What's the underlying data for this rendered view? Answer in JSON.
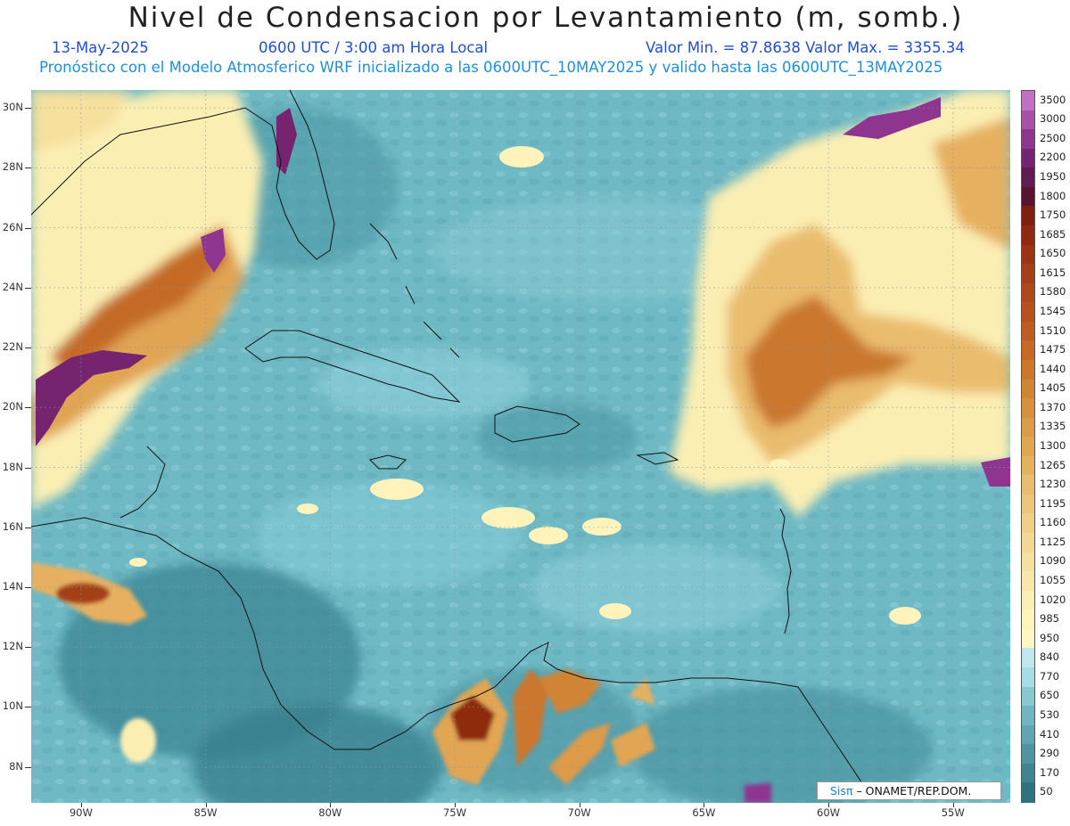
{
  "header": {
    "title": "Nivel de Condensacion por Levantamiento (m, somb.)",
    "date": "13-May-2025",
    "time": "0600 UTC / 3:00 am Hora Local",
    "minmax": "Valor Min. = 87.8638   Valor Max. = 3355.34",
    "model_line": "Pronóstico con el Modelo Atmosferico WRF inicializado a las 0600UTC_10MAY2025 y valido hasta las  0600UTC_13MAY2025"
  },
  "map": {
    "lat_range": [
      6.8,
      30.6
    ],
    "lon_range": [
      -92.0,
      -52.7
    ],
    "lat_labels": [
      "30N",
      "28N",
      "26N",
      "24N",
      "22N",
      "20N",
      "18N",
      "16N",
      "14N",
      "12N",
      "10N",
      "8N"
    ],
    "lat_values": [
      30,
      28,
      26,
      24,
      22,
      20,
      18,
      16,
      14,
      12,
      10,
      8
    ],
    "lon_labels": [
      "90W",
      "85W",
      "80W",
      "75W",
      "70W",
      "65W",
      "60W",
      "55W"
    ],
    "lon_values": [
      -90,
      -85,
      -80,
      -75,
      -70,
      -65,
      -60,
      -55
    ]
  },
  "legend": {
    "levels": [
      "3500",
      "3000",
      "2500",
      "2200",
      "1950",
      "1800",
      "1750",
      "1685",
      "1650",
      "1615",
      "1580",
      "1545",
      "1510",
      "1475",
      "1440",
      "1405",
      "1370",
      "1335",
      "1300",
      "1265",
      "1230",
      "1195",
      "1160",
      "1125",
      "1090",
      "1055",
      "1020",
      "985",
      "950",
      "840",
      "770",
      "650",
      "530",
      "410",
      "290",
      "170",
      "50"
    ],
    "colors": [
      "#c46fc4",
      "#a850a8",
      "#8e3590",
      "#76246f",
      "#621a50",
      "#5a1230",
      "#7d2010",
      "#8e2a10",
      "#9a3512",
      "#a44015",
      "#ad4a18",
      "#b4531c",
      "#bc5e21",
      "#c46a26",
      "#cb772d",
      "#d28436",
      "#d88f40",
      "#dd9a4a",
      "#e2a553",
      "#e6b060",
      "#eabc6d",
      "#eec67a",
      "#f1cf86",
      "#f4d892",
      "#f6e09d",
      "#f9e7a8",
      "#fbeeb2",
      "#fdf3bb",
      "#fff7c2",
      "#bfe8ee",
      "#a5dde6",
      "#86c9d3",
      "#6fb6c2",
      "#5ea6b2",
      "#4e95a2",
      "#3f8492",
      "#2f7280"
    ]
  },
  "credit": {
    "brand": "Sisπ",
    "text": "– ONAMET/REP.DOM."
  }
}
